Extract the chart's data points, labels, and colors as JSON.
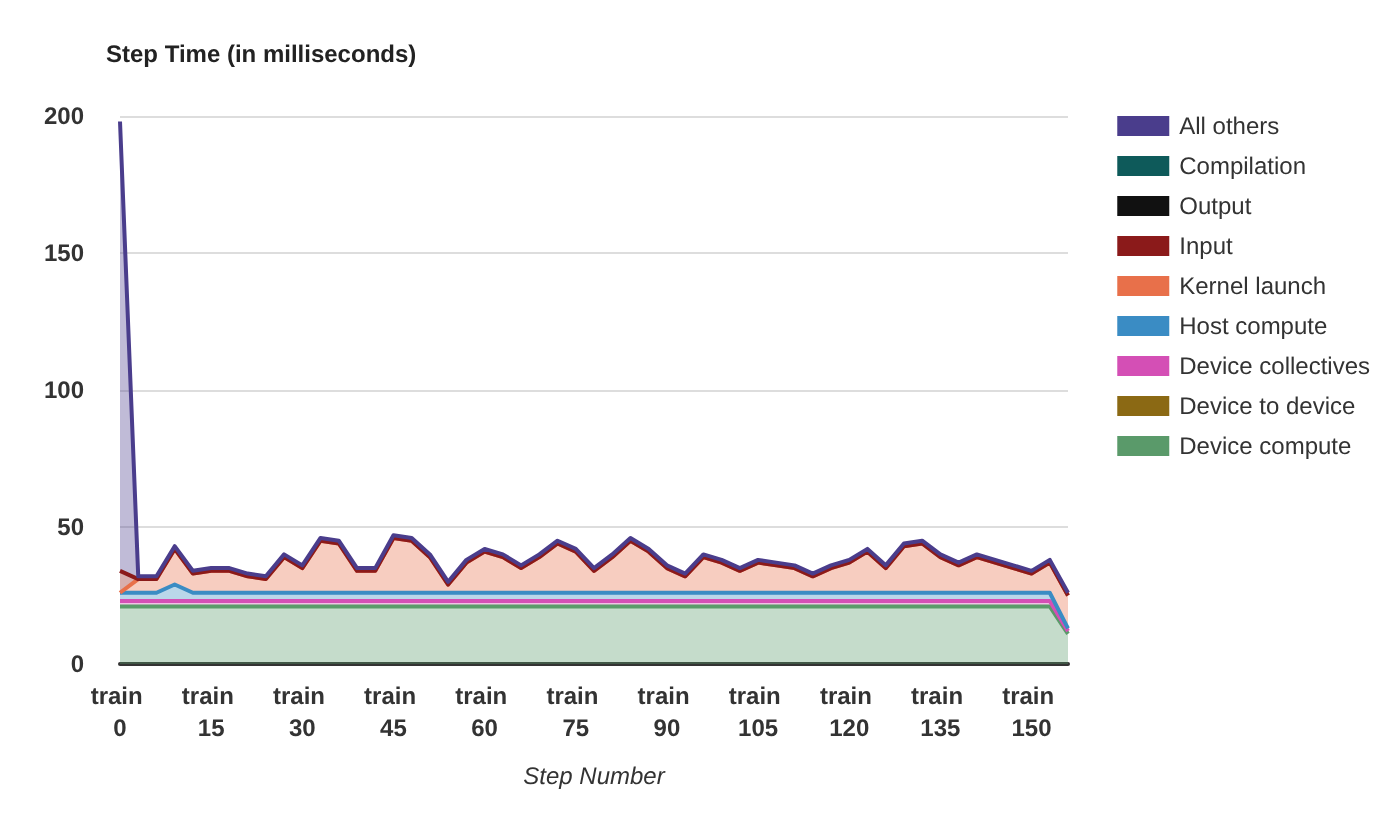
{
  "chart_data": {
    "type": "area",
    "title": "Step Time (in milliseconds)",
    "xlabel": "Step Number",
    "stacked": true,
    "grid": "y",
    "legend": "right",
    "marker": "none",
    "line_style": "solid",
    "categories": [
      "train 0",
      null,
      null,
      null,
      null,
      "train 15",
      null,
      null,
      null,
      null,
      "train 30",
      null,
      null,
      null,
      null,
      "train 45",
      null,
      null,
      null,
      null,
      "train 60",
      null,
      null,
      null,
      null,
      "train 75",
      null,
      null,
      null,
      null,
      "train 90",
      null,
      null,
      null,
      null,
      "train 105",
      null,
      null,
      null,
      null,
      "train 120",
      null,
      null,
      null,
      null,
      "train 135",
      null,
      null,
      null,
      null,
      "train 150",
      null,
      null
    ],
    "ylim": [
      0,
      200
    ],
    "yticks": [
      0,
      50,
      100,
      150,
      200
    ],
    "series": [
      {
        "name": "Device compute",
        "color": "#5a9a6a",
        "values": [
          21,
          21,
          21,
          21,
          21,
          21,
          21,
          21,
          21,
          21,
          21,
          21,
          21,
          21,
          21,
          21,
          21,
          21,
          21,
          21,
          21,
          21,
          21,
          21,
          21,
          21,
          21,
          21,
          21,
          21,
          21,
          21,
          21,
          21,
          21,
          21,
          21,
          21,
          21,
          21,
          21,
          21,
          21,
          21,
          21,
          21,
          21,
          21,
          21,
          21,
          21,
          21,
          11
        ]
      },
      {
        "name": "Device to device",
        "color": "#8b6914",
        "values": [
          null,
          null,
          null,
          null,
          null,
          null,
          null,
          null,
          null,
          null,
          null,
          null,
          null,
          null,
          null,
          null,
          null,
          null,
          null,
          null,
          null,
          null,
          null,
          null,
          null,
          null,
          null,
          null,
          null,
          null,
          null,
          null,
          null,
          null,
          null,
          null,
          null,
          null,
          null,
          null,
          null,
          null,
          null,
          null,
          null,
          null,
          null,
          null,
          null,
          null,
          null,
          null,
          null
        ]
      },
      {
        "name": "Device collectives",
        "color": "#d44fb5",
        "values": [
          2,
          2,
          2,
          2,
          2,
          2,
          2,
          2,
          2,
          2,
          2,
          2,
          2,
          2,
          2,
          2,
          2,
          2,
          2,
          2,
          2,
          2,
          2,
          2,
          2,
          2,
          2,
          2,
          2,
          2,
          2,
          2,
          2,
          2,
          2,
          2,
          2,
          2,
          2,
          2,
          2,
          2,
          2,
          2,
          2,
          2,
          2,
          2,
          2,
          2,
          2,
          2,
          1
        ]
      },
      {
        "name": "Host compute",
        "color": "#3a8cc4",
        "values": [
          3,
          3,
          3,
          6,
          3,
          3,
          3,
          3,
          3,
          3,
          3,
          3,
          3,
          3,
          3,
          3,
          3,
          3,
          3,
          3,
          3,
          3,
          3,
          3,
          3,
          3,
          3,
          3,
          3,
          3,
          3,
          3,
          3,
          3,
          3,
          3,
          3,
          3,
          3,
          3,
          3,
          3,
          3,
          3,
          3,
          3,
          3,
          3,
          3,
          3,
          3,
          3,
          1
        ]
      },
      {
        "name": "Kernel launch",
        "color": "#e8704a",
        "values": [
          0,
          5,
          5,
          13,
          7,
          8,
          8,
          6,
          5,
          13,
          9,
          19,
          18,
          8,
          8,
          20,
          19,
          13,
          3,
          11,
          15,
          13,
          9,
          13,
          18,
          15,
          8,
          13,
          19,
          15,
          9,
          6,
          13,
          11,
          8,
          11,
          10,
          9,
          6,
          9,
          11,
          15,
          9,
          17,
          18,
          13,
          10,
          13,
          11,
          9,
          7,
          11,
          12
        ]
      },
      {
        "name": "Input",
        "color": "#8b1a1a",
        "values": [
          8,
          0,
          0,
          0,
          0,
          0,
          0,
          0,
          0,
          0,
          0,
          0,
          0,
          0,
          0,
          0,
          0,
          0,
          0,
          0,
          0,
          0,
          0,
          0,
          0,
          0,
          0,
          0,
          0,
          0,
          0,
          0,
          0,
          0,
          0,
          0,
          0,
          0,
          0,
          0,
          0,
          0,
          0,
          0,
          0,
          0,
          0,
          0,
          0,
          0,
          0,
          0,
          0
        ]
      },
      {
        "name": "Output",
        "color": "#111111",
        "values": [
          null,
          null,
          null,
          null,
          null,
          null,
          null,
          null,
          null,
          null,
          null,
          null,
          null,
          null,
          null,
          null,
          null,
          null,
          null,
          null,
          null,
          null,
          null,
          null,
          null,
          null,
          null,
          null,
          null,
          null,
          null,
          null,
          null,
          null,
          null,
          null,
          null,
          null,
          null,
          null,
          null,
          null,
          null,
          null,
          null,
          null,
          null,
          null,
          null,
          null,
          null,
          null,
          null
        ]
      },
      {
        "name": "Compilation",
        "color": "#0e5a5a",
        "values": [
          null,
          null,
          null,
          null,
          null,
          null,
          null,
          null,
          null,
          null,
          null,
          null,
          null,
          null,
          null,
          null,
          null,
          null,
          null,
          null,
          null,
          null,
          null,
          null,
          null,
          null,
          null,
          null,
          null,
          null,
          null,
          null,
          null,
          null,
          null,
          null,
          null,
          null,
          null,
          null,
          null,
          null,
          null,
          null,
          null,
          null,
          null,
          null,
          null,
          null,
          null,
          null,
          null
        ]
      },
      {
        "name": "All others",
        "color": "#4a3d8c",
        "values": [
          164,
          1,
          1,
          1,
          1,
          1,
          1,
          1,
          1,
          1,
          1,
          1,
          1,
          1,
          1,
          1,
          1,
          1,
          1,
          1,
          1,
          1,
          1,
          1,
          1,
          1,
          1,
          1,
          1,
          1,
          1,
          1,
          1,
          1,
          1,
          1,
          1,
          1,
          1,
          1,
          1,
          1,
          1,
          1,
          1,
          1,
          1,
          1,
          1,
          1,
          1,
          1,
          1
        ]
      }
    ]
  }
}
